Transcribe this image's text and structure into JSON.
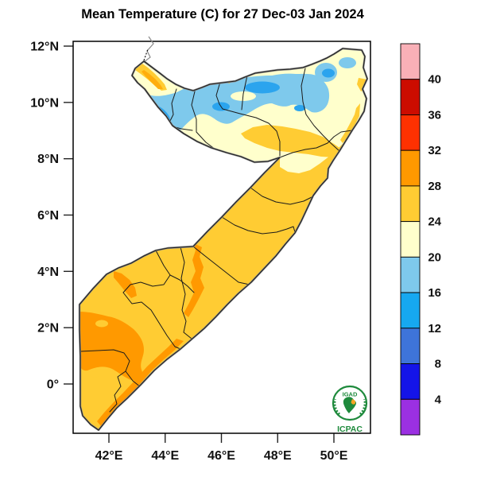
{
  "title": "Mean Temperature (C) for 27 Dec-03 Jan 2024",
  "map_region": "Somalia (IGAD / ICPAC mean temperature analysis map)",
  "axes": {
    "y_unit": "latitude",
    "y_ticks": [
      "12°N",
      "10°N",
      "8°N",
      "6°N",
      "4°N",
      "2°N",
      "0°"
    ],
    "x_unit": "longitude",
    "x_ticks": [
      "42°E",
      "44°E",
      "46°E",
      "48°E",
      "50°E"
    ]
  },
  "colorbar": {
    "unit": "C",
    "tick_labels": [
      "40",
      "36",
      "32",
      "28",
      "24",
      "20",
      "16",
      "12",
      "8",
      "4"
    ],
    "segments": [
      {
        "range": "> 40",
        "color": "#F9B0B7"
      },
      {
        "range": "36-40",
        "color": "#CC0C00"
      },
      {
        "range": "32-36",
        "color": "#FE3101"
      },
      {
        "range": "28-32",
        "color": "#FF9900"
      },
      {
        "range": "24-28",
        "color": "#FFCC33"
      },
      {
        "range": "20-24",
        "color": "#FFFFCC"
      },
      {
        "range": "16-20",
        "color": "#7EC9EC"
      },
      {
        "range": "12-16",
        "color": "#16A8F0"
      },
      {
        "range": "8-12",
        "color": "#3E74D9"
      },
      {
        "range": "4-8",
        "color": "#1414E8"
      },
      {
        "range": "< 4",
        "color": "#9B30E2"
      }
    ]
  },
  "palette": {
    "pale_yellow_20_24": "#FFFFCC",
    "gold_24_28": "#FFCC33",
    "gold_deep": "#FFAD0D",
    "orange_28_32": "#FF9900",
    "light_blue_16_20": "#7EC9EC",
    "blue_12_16": "#2BA4EE",
    "land_outline": "#1f1f1f",
    "coast_gray": "#8a8a8a",
    "logo_green": "#1E8A3C",
    "logo_orange": "#F5A623"
  },
  "map_zones": [
    {
      "area": "Gulf of Aden coastal belt across the north",
      "temp_c": "16-20",
      "color_key": "light_blue_16_20"
    },
    {
      "area": "Northern highland cores (several pockets)",
      "temp_c": "12-16",
      "color_key": "blue_12_16"
    },
    {
      "area": "Northern plateau interior (Somaliland / Bari)",
      "temp_c": "20-24",
      "color_key": "pale_yellow_20_24"
    },
    {
      "area": "Sool-Nugal band, northwest tip and most of central/southern Somalia",
      "temp_c": "24-28",
      "color_key": "gold_24_28"
    },
    {
      "area": "Southwest (Gedo/Bay) patches, Shabelle valley streak and southern coastal strip",
      "temp_c": "28-32",
      "color_key": "orange_28_32"
    }
  ],
  "logo": {
    "org": "IGAD",
    "acronym": "ICPAC"
  }
}
